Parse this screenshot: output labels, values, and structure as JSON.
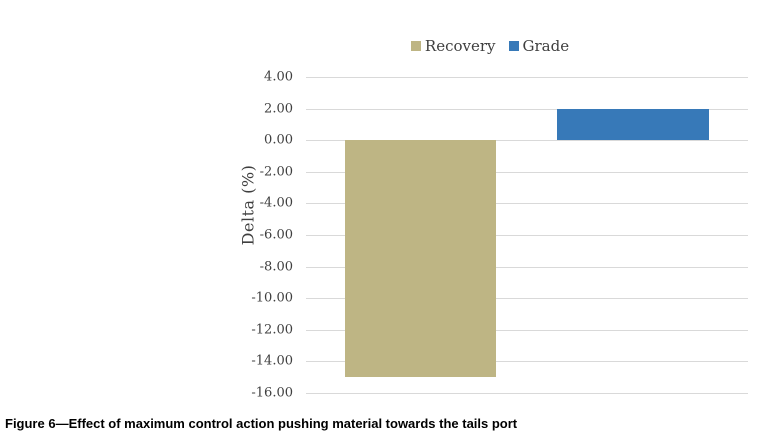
{
  "chart_data": {
    "type": "bar",
    "title": "",
    "categories": [
      "Recovery",
      "Grade"
    ],
    "values": [
      -15.0,
      2.0
    ],
    "bar_colors": [
      "#BEB584",
      "#3779B8"
    ],
    "legend": [
      {
        "label": "Recovery",
        "color": "#BEB584"
      },
      {
        "label": "Grade",
        "color": "#3779B8"
      }
    ],
    "legend_position": "top-center",
    "xlabel": "",
    "ylabel": "Delta (%)",
    "ylim": [
      -16,
      4
    ],
    "ytick_step": 2,
    "tick_decimals": 2,
    "grid": true,
    "gridline_color": "#D9D9D9",
    "axis_text_color": "#3F3F3F"
  },
  "caption": "Figure 6—Effect of maximum control action pushing material towards the tails port",
  "colors": {
    "background": "#FFFFFF",
    "caption_text": "#000000"
  }
}
